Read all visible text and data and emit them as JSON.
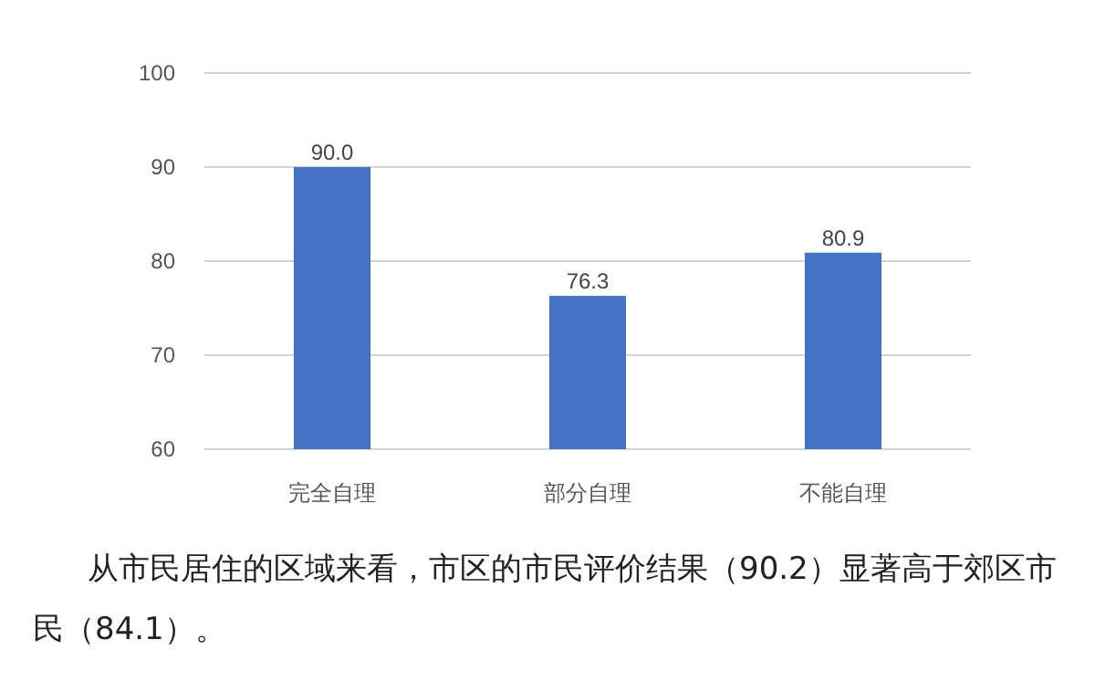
{
  "chart_data": {
    "type": "bar",
    "categories": [
      "完全自理",
      "部分自理",
      "不能自理"
    ],
    "values": [
      90.0,
      76.3,
      80.9
    ],
    "value_labels": [
      "90.0",
      "76.3",
      "80.9"
    ],
    "color": "#4472c4",
    "ylim": [
      60,
      100
    ],
    "yticks": [
      60,
      70,
      80,
      90,
      100
    ],
    "grid": "y",
    "annotations": [
      "从市民居住的区域来看，市区的市民评价结果（90.2）显著高于郊区市民（84.1）。"
    ]
  }
}
